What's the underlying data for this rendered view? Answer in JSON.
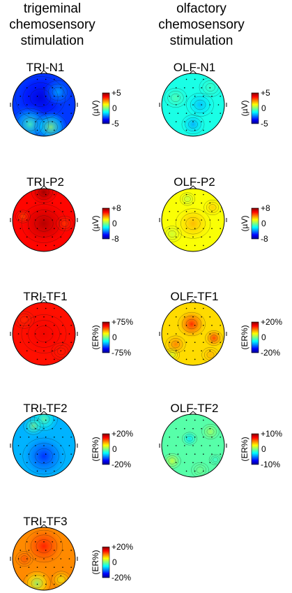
{
  "columns": [
    {
      "title_lines": [
        "trigeminal",
        "chemosensory",
        "stimulation"
      ]
    },
    {
      "title_lines": [
        "olfactory",
        "chemosensory",
        "stimulation"
      ]
    }
  ],
  "panels": [
    {
      "label": "TRI-N1",
      "unit": "(µV)",
      "max_label": "+5",
      "mid_label": "0",
      "min_label": "-5",
      "pattern": "tri_n1"
    },
    {
      "label": "OLF-N1",
      "unit": "(µV)",
      "max_label": "+5",
      "mid_label": "0",
      "min_label": "-5",
      "pattern": "olf_n1"
    },
    {
      "label": "TRI-P2",
      "unit": "(µV)",
      "max_label": "+8",
      "mid_label": "0",
      "min_label": "-8",
      "pattern": "tri_p2"
    },
    {
      "label": "OLF-P2",
      "unit": "(µV)",
      "max_label": "+8",
      "mid_label": "0",
      "min_label": "-8",
      "pattern": "olf_p2"
    },
    {
      "label": "TRI-TF1",
      "unit": "(ER%)",
      "max_label": "+75%",
      "mid_label": "0",
      "min_label": "-75%",
      "pattern": "tri_tf1"
    },
    {
      "label": "OLF-TF1",
      "unit": "(ER%)",
      "max_label": "+20%",
      "mid_label": "0",
      "min_label": "-20%",
      "pattern": "olf_tf1"
    },
    {
      "label": "TRI-TF2",
      "unit": "(ER%)",
      "max_label": "+20%",
      "mid_label": "0",
      "min_label": "-20%",
      "pattern": "tri_tf2"
    },
    {
      "label": "OLF-TF2",
      "unit": "(ER%)",
      "max_label": "+10%",
      "mid_label": "0",
      "min_label": "-10%",
      "pattern": "olf_tf2"
    },
    {
      "label": "TRI-TF3",
      "unit": "(ER%)",
      "max_label": "+20%",
      "mid_label": "0",
      "min_label": "-20%",
      "pattern": "tri_tf3"
    }
  ],
  "colormap": [
    "#00008f",
    "#0000ff",
    "#0080ff",
    "#00ffff",
    "#80ff80",
    "#ffff00",
    "#ff8000",
    "#ff0000",
    "#800000"
  ]
}
